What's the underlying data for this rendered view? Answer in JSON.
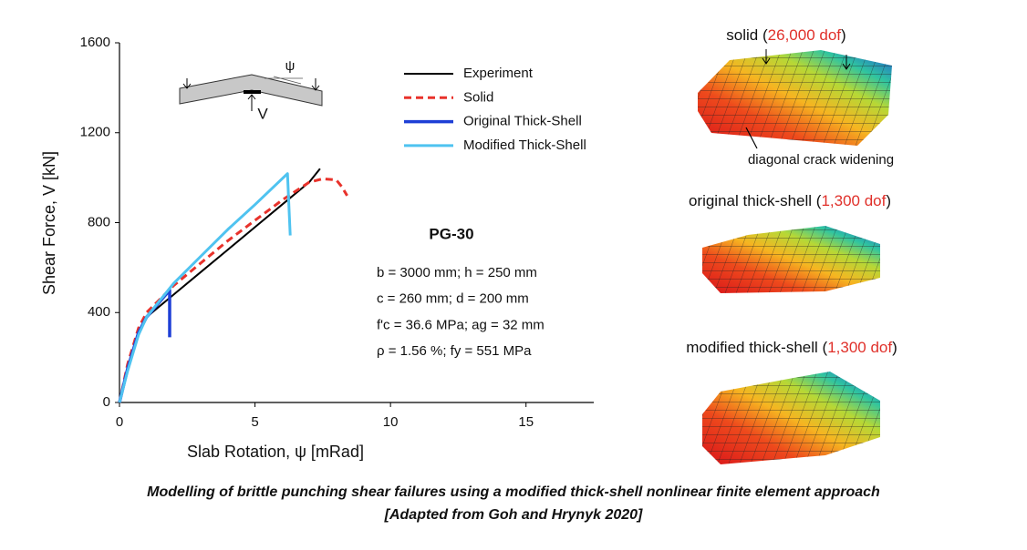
{
  "chart_data": {
    "type": "line",
    "x_label": "Slab Rotation, ψ [mRad]",
    "y_label": "Shear Force, V [kN]",
    "xlim": [
      0,
      17.5
    ],
    "ylim": [
      0,
      1600
    ],
    "xticks": [
      0,
      5,
      10,
      15
    ],
    "yticks": [
      0,
      400,
      800,
      1200,
      1600
    ],
    "series": [
      {
        "name": "Experiment",
        "color": "#000000",
        "line_width": 2,
        "dashed": false,
        "x": [
          0,
          0.3,
          0.7,
          1,
          2,
          3,
          4,
          5,
          6,
          7,
          7.4
        ],
        "values": [
          0,
          150,
          300,
          380,
          480,
          580,
          680,
          780,
          880,
          980,
          1040
        ]
      },
      {
        "name": "Solid",
        "color": "#e8322b",
        "line_width": 3,
        "dashed": true,
        "x": [
          0,
          0.3,
          0.7,
          1,
          2,
          3,
          4,
          5,
          6,
          7,
          7.5,
          8,
          8.2,
          8.4
        ],
        "values": [
          0,
          170,
          330,
          400,
          520,
          620,
          720,
          810,
          900,
          980,
          995,
          990,
          960,
          920
        ]
      },
      {
        "name": "Original Thick-Shell",
        "color": "#1e3fd6",
        "line_width": 3.5,
        "dashed": false,
        "x": [
          0,
          0.3,
          0.7,
          1,
          1.85,
          1.85
        ],
        "values": [
          0,
          150,
          310,
          380,
          500,
          290
        ]
      },
      {
        "name": "Modified Thick-Shell",
        "color": "#4fc3f0",
        "line_width": 3,
        "dashed": false,
        "x": [
          0,
          0.3,
          0.7,
          1,
          2,
          3,
          4,
          5,
          6.2,
          6.3
        ],
        "values": [
          0,
          140,
          300,
          380,
          530,
          650,
          770,
          880,
          1018,
          743
        ]
      }
    ],
    "annotations": {
      "specimen": "PG-30",
      "parameters": [
        "b = 3000 mm; h = 250 mm",
        "c = 260 mm; d = 200 mm",
        "f'c = 36.6 MPa; ag = 32 mm",
        "ρ = 1.56 %; fy = 551 MPa"
      ],
      "inset_rotation": "ψ",
      "inset_force": "V"
    }
  },
  "panels": [
    {
      "label": [
        "solid (",
        "26,000 dof",
        ")"
      ],
      "note": "diagonal crack widening"
    },
    {
      "label": [
        "original thick-shell (",
        "1,300 dof",
        ")"
      ]
    },
    {
      "label": [
        "modified thick-shell (",
        "1,300 dof",
        ")"
      ]
    }
  ],
  "caption": [
    "Modelling of brittle punching shear failures using a modified thick-shell nonlinear finite element approach",
    "[Adapted from Goh and Hrynyk 2020]"
  ]
}
